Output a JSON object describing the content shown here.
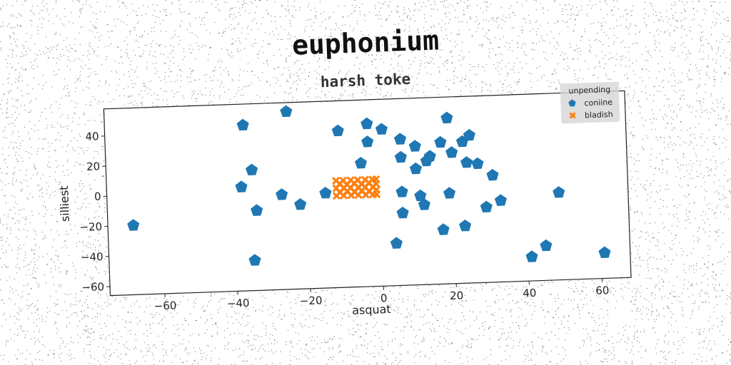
{
  "title": "euphonium",
  "subtitle": "harsh toke",
  "chart_data": {
    "type": "scatter",
    "xlabel": "asquat",
    "ylabel": "silliest",
    "xlim": [
      -75,
      68
    ],
    "ylim": [
      -66,
      58
    ],
    "xticks": [
      -60,
      -40,
      -20,
      0,
      20,
      40,
      60
    ],
    "yticks": [
      -60,
      -40,
      -20,
      0,
      20,
      40
    ],
    "grid": false,
    "legend": {
      "title": "unpending",
      "placement": "top-right",
      "entries": [
        "coniine",
        "bladish"
      ]
    },
    "series": [
      {
        "name": "coniine",
        "marker": "pentagon",
        "color": "#1f77b4",
        "points": [
          [
            -68,
            -20
          ],
          [
            -37,
            44
          ],
          [
            -25,
            52
          ],
          [
            -35,
            14
          ],
          [
            -38,
            3
          ],
          [
            -27,
            -3
          ],
          [
            -22,
            -10
          ],
          [
            -34,
            -13
          ],
          [
            -35,
            -46
          ],
          [
            -15,
            -3
          ],
          [
            -11,
            38
          ],
          [
            -5,
            16
          ],
          [
            -3,
            42
          ],
          [
            -3,
            30
          ],
          [
            1,
            38
          ],
          [
            6,
            31
          ],
          [
            6,
            19
          ],
          [
            10,
            26
          ],
          [
            10,
            11
          ],
          [
            13,
            16
          ],
          [
            14,
            19
          ],
          [
            17,
            28
          ],
          [
            19,
            44
          ],
          [
            20,
            21
          ],
          [
            23,
            28
          ],
          [
            25,
            32
          ],
          [
            24,
            14
          ],
          [
            27,
            13
          ],
          [
            31,
            5
          ],
          [
            6,
            -4
          ],
          [
            11,
            -7
          ],
          [
            12,
            -13
          ],
          [
            19,
            -6
          ],
          [
            6,
            -18
          ],
          [
            29,
            -16
          ],
          [
            33,
            -12
          ],
          [
            49,
            -8
          ],
          [
            4,
            -38
          ],
          [
            17,
            -30
          ],
          [
            23,
            -28
          ],
          [
            41,
            -50
          ],
          [
            45,
            -43
          ],
          [
            61,
            -49
          ]
        ]
      },
      {
        "name": "bladish",
        "marker": "x",
        "color": "#ff7f0e",
        "points": [
          [
            -12,
            -5
          ],
          [
            -12,
            0
          ],
          [
            -12,
            5
          ],
          [
            -11,
            -3
          ],
          [
            -11,
            3
          ],
          [
            -10,
            -5
          ],
          [
            -10,
            0
          ],
          [
            -10,
            5
          ],
          [
            -9,
            -2
          ],
          [
            -9,
            2
          ],
          [
            -8,
            -5
          ],
          [
            -8,
            0
          ],
          [
            -8,
            5
          ],
          [
            -7,
            -3
          ],
          [
            -7,
            3
          ],
          [
            -6,
            -5
          ],
          [
            -6,
            0
          ],
          [
            -6,
            5
          ],
          [
            -5,
            -2
          ],
          [
            -5,
            2
          ],
          [
            -4,
            -5
          ],
          [
            -4,
            0
          ],
          [
            -4,
            5
          ],
          [
            -3,
            -3
          ],
          [
            -3,
            3
          ],
          [
            -2,
            -5
          ],
          [
            -2,
            0
          ],
          [
            -2,
            5
          ],
          [
            -1,
            -2
          ],
          [
            -1,
            2
          ],
          [
            -1,
            -5
          ],
          [
            -1,
            5
          ]
        ]
      }
    ]
  }
}
